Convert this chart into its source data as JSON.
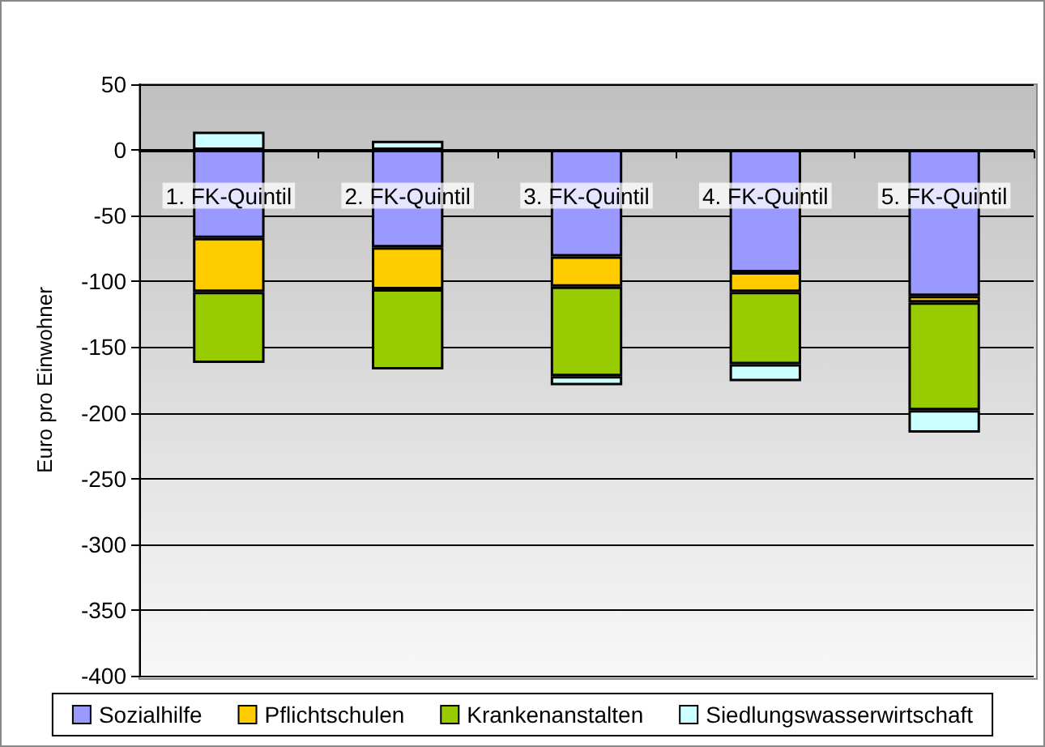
{
  "chart_data": {
    "type": "bar",
    "stacked": true,
    "ylabel": "Euro pro Einwohner",
    "categories": [
      "1. FK-Quintil",
      "2. FK-Quintil",
      "3. FK-Quintil",
      "4. FK-Quintil",
      "5. FK-Quintil"
    ],
    "series": [
      {
        "name": "Sozialhilfe",
        "color": "#9999ff",
        "values": [
          -67,
          -74,
          -81,
          -93,
          -111
        ]
      },
      {
        "name": "Pflichtschulen",
        "color": "#ffcc00",
        "values": [
          -41,
          -32,
          -23,
          -15,
          -5
        ]
      },
      {
        "name": "Krankenanstalten",
        "color": "#99cc00",
        "values": [
          -54,
          -61,
          -68,
          -55,
          -82
        ]
      },
      {
        "name": "Siedlungswasserwirtschaft",
        "color": "#ccffff",
        "values": [
          14,
          7,
          -7,
          -13,
          -17
        ]
      }
    ],
    "ylim": [
      -400,
      50
    ],
    "yticks": [
      -400,
      -350,
      -300,
      -250,
      -200,
      -150,
      -100,
      -50,
      0,
      50
    ],
    "grid": "y",
    "legend": "bottom"
  }
}
